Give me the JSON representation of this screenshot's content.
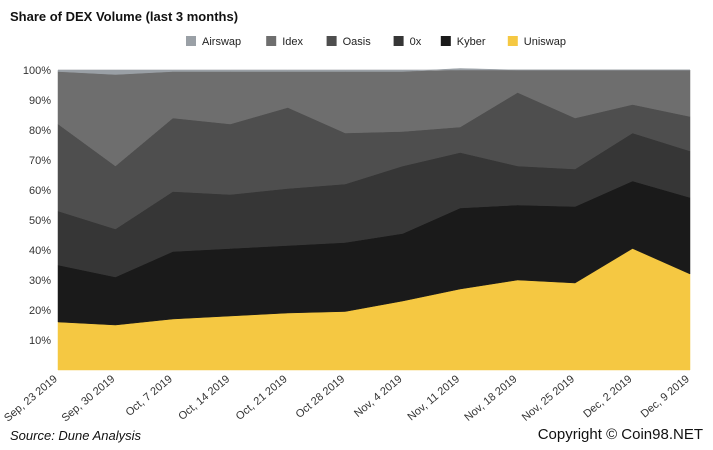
{
  "title": "Share of DEX Volume (last 3 months)",
  "source": "Source: Dune Analysis",
  "copyright": "Copyright © Coin98.NET",
  "chart_data": {
    "type": "area",
    "stacked": true,
    "title": "Share of DEX Volume (last 3 months)",
    "x": [
      "Sep, 23 2019",
      "Sep, 30 2019",
      "Oct, 7 2019",
      "Oct, 14 2019",
      "Oct, 21 2019",
      "Oct 28 2019",
      "Nov, 4 2019",
      "Nov, 11 2019",
      "Nov, 18 2019",
      "Nov, 25 2019",
      "Dec, 2 2019",
      "Dec, 9 2019"
    ],
    "yticks": [
      "10%",
      "20%",
      "30%",
      "40%",
      "50%",
      "60%",
      "70%",
      "80%",
      "90%",
      "100%"
    ],
    "ylim": [
      0,
      100
    ],
    "legend_position": "top",
    "series": [
      {
        "name": "Uniswap",
        "color": "#f5c842",
        "values": [
          16,
          15,
          17,
          18,
          19,
          19.5,
          23,
          27,
          30,
          29,
          40.5,
          32
        ]
      },
      {
        "name": "Kyber",
        "color": "#1a1a1a",
        "values": [
          19,
          16,
          22.5,
          22.5,
          22.5,
          23,
          22.5,
          27,
          25,
          25.5,
          22.5,
          25.5
        ]
      },
      {
        "name": "0x",
        "color": "#363636",
        "values": [
          18,
          16,
          20,
          18,
          19,
          19.5,
          22.5,
          18.5,
          13,
          12.5,
          16,
          15.5
        ]
      },
      {
        "name": "Oasis",
        "color": "#4e4e4e",
        "values": [
          29,
          21,
          24.5,
          23.5,
          27,
          17,
          11.5,
          8.5,
          24.5,
          17,
          9.5,
          11.5
        ]
      },
      {
        "name": "Idex",
        "color": "#6e6e6e",
        "values": [
          17.5,
          30.5,
          15.5,
          17.5,
          12,
          20.5,
          20,
          19.5,
          7.5,
          16,
          11.5,
          15.5
        ]
      },
      {
        "name": "Airswap",
        "color": "#9aa0a6",
        "values": [
          0.5,
          1.5,
          0.5,
          0.5,
          0.5,
          0.5,
          0.5,
          0.5,
          0,
          0,
          0,
          0
        ]
      }
    ],
    "legend_order": [
      "Airswap",
      "Idex",
      "Oasis",
      "0x",
      "Kyber",
      "Uniswap"
    ]
  }
}
